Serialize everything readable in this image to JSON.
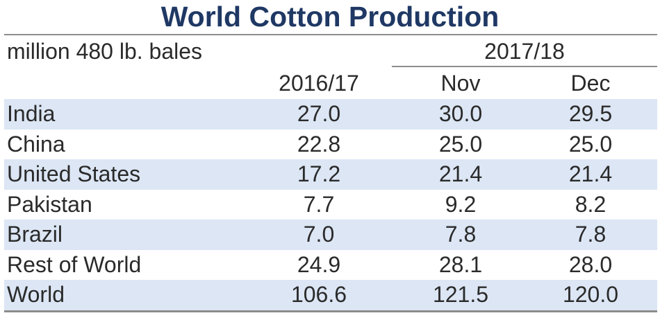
{
  "chart_data": {
    "type": "table",
    "title": "World Cotton Production",
    "units": "million 480 lb. bales",
    "group_header": "2017/18",
    "columns": [
      "2016/17",
      "Nov",
      "Dec"
    ],
    "rows": [
      {
        "label": "India",
        "values": [
          "27.0",
          "30.0",
          "29.5"
        ]
      },
      {
        "label": "China",
        "values": [
          "22.8",
          "25.0",
          "25.0"
        ]
      },
      {
        "label": "United States",
        "values": [
          "17.2",
          "21.4",
          "21.4"
        ]
      },
      {
        "label": "Pakistan",
        "values": [
          "7.7",
          "9.2",
          "8.2"
        ]
      },
      {
        "label": "Brazil",
        "values": [
          "7.0",
          "7.8",
          "7.8"
        ]
      },
      {
        "label": "Rest of World",
        "values": [
          "24.9",
          "28.1",
          "28.0"
        ]
      },
      {
        "label": "World",
        "values": [
          "106.6",
          "121.5",
          "120.0"
        ]
      }
    ]
  },
  "colors": {
    "title": "#1f3864",
    "row_shade": "#dce6f4",
    "rule": "#8c8c8c",
    "text": "#2a2a2a"
  }
}
